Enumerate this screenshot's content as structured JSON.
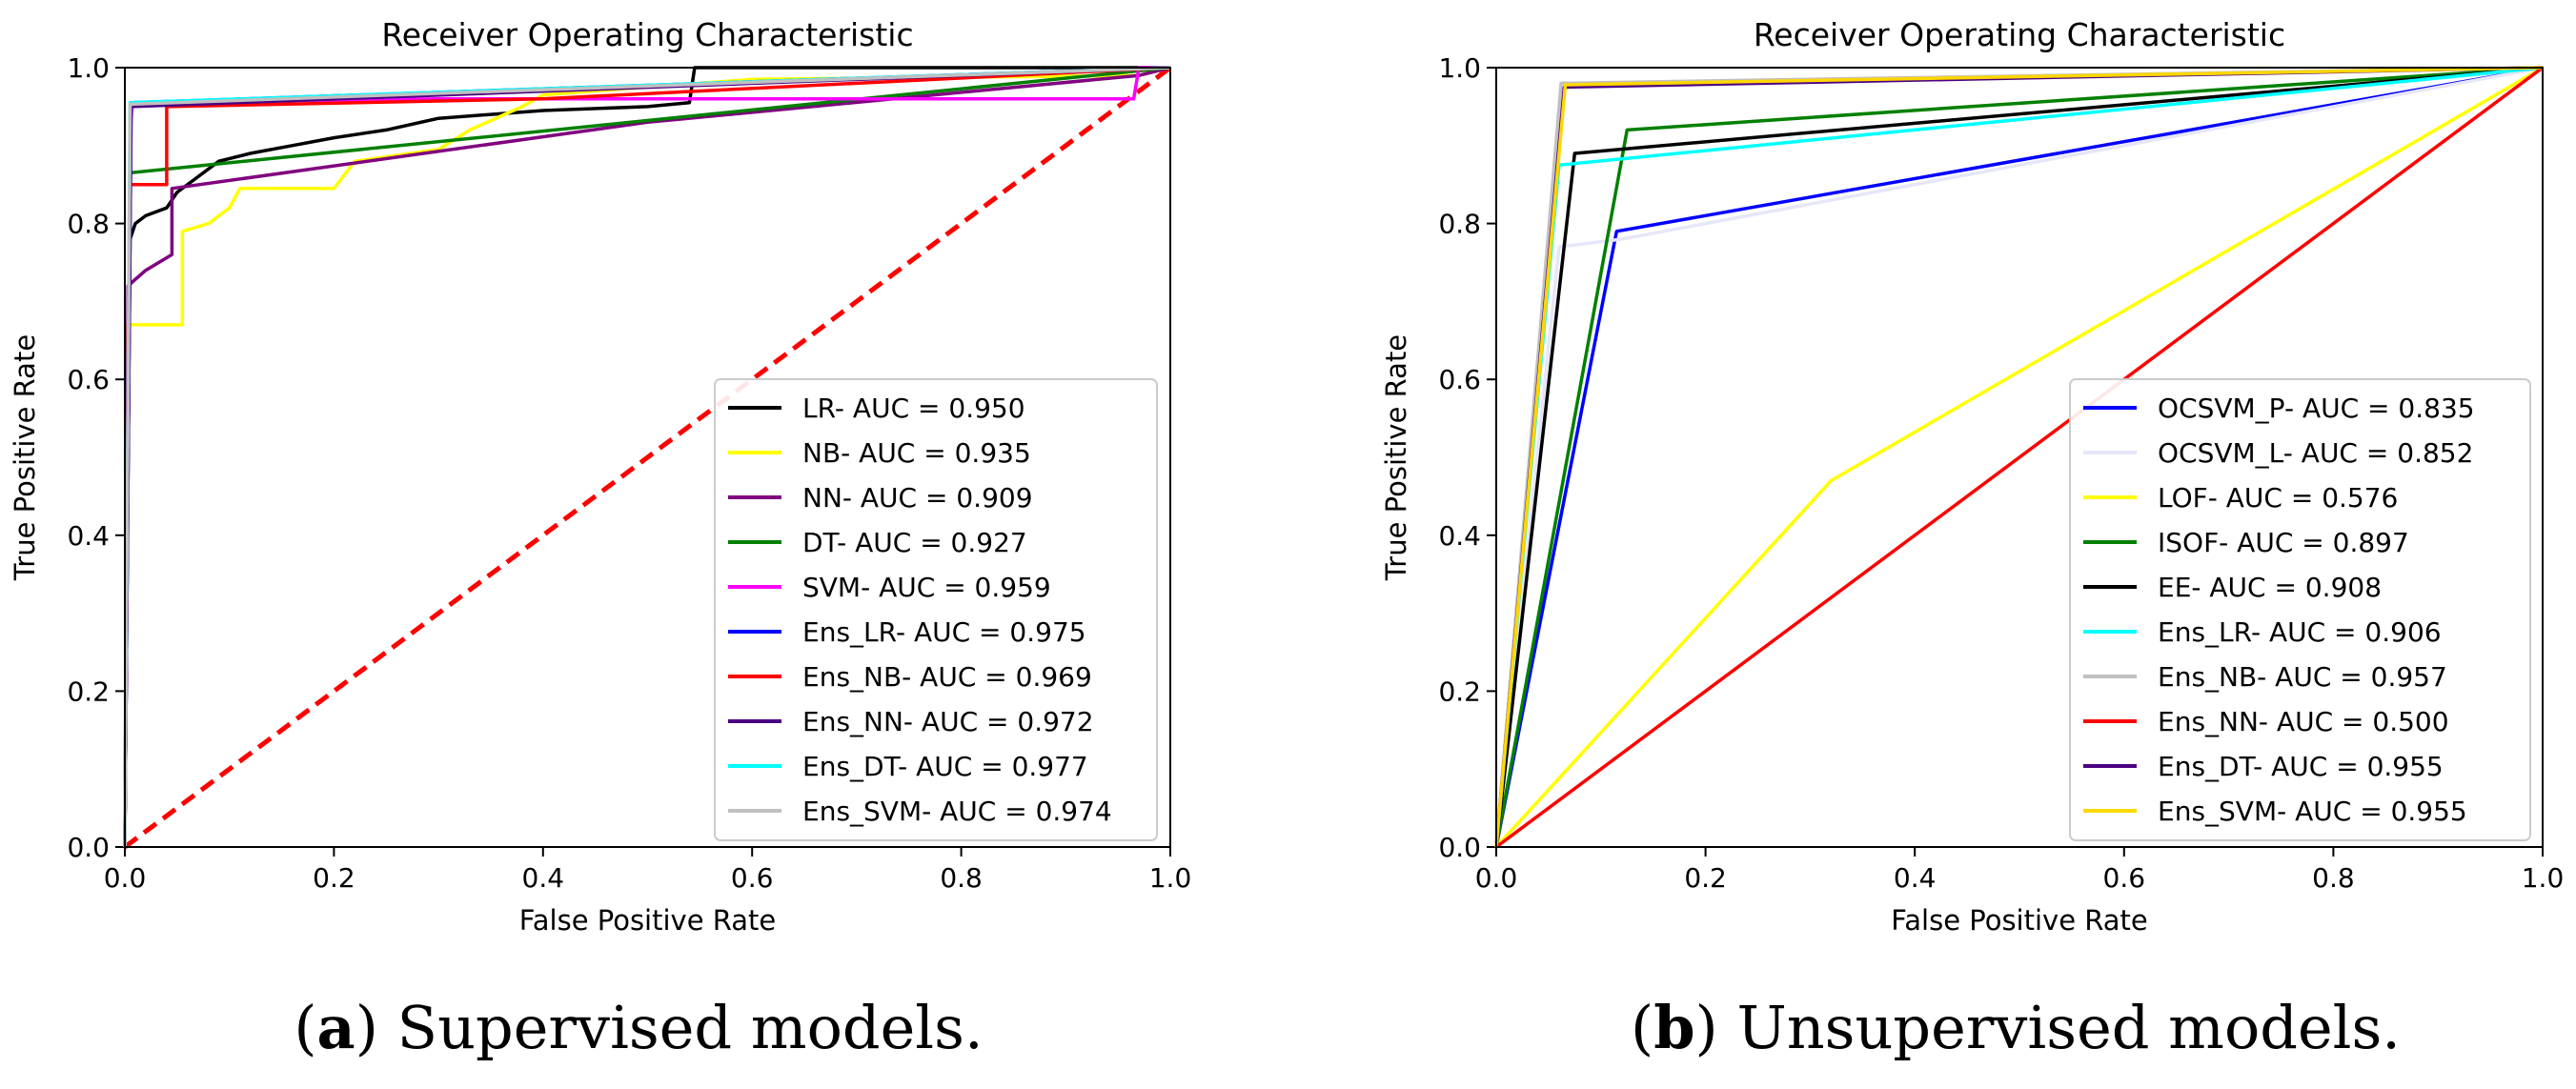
{
  "figure": {
    "left_caption": {
      "label": "a",
      "text": "Supervised models."
    },
    "right_caption": {
      "label": "b",
      "text": "Unsupervised models."
    }
  },
  "chart_data": [
    {
      "type": "line",
      "title": "Receiver Operating Characteristic",
      "xlabel": "False Positive Rate",
      "ylabel": "True Positive Rate",
      "xlim": [
        0,
        1
      ],
      "ylim": [
        0,
        1
      ],
      "xticks": [
        "0.0",
        "0.2",
        "0.4",
        "0.6",
        "0.8",
        "1.0"
      ],
      "yticks": [
        "0.0",
        "0.2",
        "0.4",
        "0.6",
        "0.8",
        "1.0"
      ],
      "legend_position": "lower-right",
      "series": [
        {
          "name": "LR- AUC = 0.950",
          "color": "#000000",
          "points": [
            [
              0,
              0
            ],
            [
              0.005,
              0.78
            ],
            [
              0.01,
              0.8
            ],
            [
              0.02,
              0.81
            ],
            [
              0.04,
              0.82
            ],
            [
              0.05,
              0.84
            ],
            [
              0.07,
              0.86
            ],
            [
              0.09,
              0.88
            ],
            [
              0.12,
              0.89
            ],
            [
              0.16,
              0.9
            ],
            [
              0.2,
              0.91
            ],
            [
              0.25,
              0.92
            ],
            [
              0.3,
              0.935
            ],
            [
              0.35,
              0.94
            ],
            [
              0.4,
              0.945
            ],
            [
              0.5,
              0.95
            ],
            [
              0.54,
              0.955
            ],
            [
              0.545,
              1.0
            ],
            [
              1,
              1
            ]
          ]
        },
        {
          "name": "NB- AUC = 0.935",
          "color": "#ffff00",
          "points": [
            [
              0,
              0
            ],
            [
              0.002,
              0.67
            ],
            [
              0.055,
              0.67
            ],
            [
              0.055,
              0.79
            ],
            [
              0.08,
              0.8
            ],
            [
              0.1,
              0.82
            ],
            [
              0.11,
              0.845
            ],
            [
              0.2,
              0.845
            ],
            [
              0.22,
              0.88
            ],
            [
              0.3,
              0.895
            ],
            [
              0.33,
              0.92
            ],
            [
              0.38,
              0.95
            ],
            [
              0.4,
              0.965
            ],
            [
              0.6,
              0.985
            ],
            [
              0.97,
              0.99
            ],
            [
              1,
              1
            ]
          ]
        },
        {
          "name": "NN- AUC = 0.909",
          "color": "#800080",
          "points": [
            [
              0,
              0
            ],
            [
              0.003,
              0.72
            ],
            [
              0.02,
              0.74
            ],
            [
              0.045,
              0.76
            ],
            [
              0.045,
              0.845
            ],
            [
              0.5,
              0.93
            ],
            [
              0.97,
              0.99
            ],
            [
              1,
              1
            ]
          ]
        },
        {
          "name": "DT- AUC = 0.927",
          "color": "#008000",
          "points": [
            [
              0,
              0
            ],
            [
              0.005,
              0.865
            ],
            [
              1,
              1
            ]
          ]
        },
        {
          "name": "SVM- AUC = 0.959",
          "color": "#ff00ff",
          "points": [
            [
              0,
              0
            ],
            [
              0.005,
              0.91
            ],
            [
              0.007,
              0.955
            ],
            [
              0.3,
              0.96
            ],
            [
              0.965,
              0.96
            ],
            [
              0.97,
              1.0
            ],
            [
              1,
              1
            ]
          ]
        },
        {
          "name": "Ens_LR- AUC = 0.975",
          "color": "#0000ff",
          "points": [
            [
              0,
              0
            ],
            [
              0.006,
              0.955
            ],
            [
              1,
              1
            ]
          ]
        },
        {
          "name": "Ens_NB- AUC = 0.969",
          "color": "#ff0000",
          "points": [
            [
              0,
              0
            ],
            [
              0.005,
              0.85
            ],
            [
              0.04,
              0.85
            ],
            [
              0.04,
              0.95
            ],
            [
              0.4,
              0.96
            ],
            [
              1,
              1
            ]
          ]
        },
        {
          "name": "Ens_NN- AUC = 0.972",
          "color": "#4b0082",
          "points": [
            [
              0,
              0
            ],
            [
              0.006,
              0.95
            ],
            [
              1,
              1
            ]
          ]
        },
        {
          "name": "Ens_DT- AUC = 0.977",
          "color": "#00ffff",
          "points": [
            [
              0,
              0
            ],
            [
              0.005,
              0.955
            ],
            [
              1,
              1
            ]
          ]
        },
        {
          "name": "Ens_SVM- AUC = 0.974",
          "color": "#c0c0c0",
          "points": [
            [
              0,
              0
            ],
            [
              0.005,
              0.953
            ],
            [
              1,
              1
            ]
          ]
        }
      ],
      "reference_line": {
        "points": [
          [
            0,
            0
          ],
          [
            1,
            1
          ]
        ],
        "color": "#ff0000",
        "style": "dashed"
      }
    },
    {
      "type": "line",
      "title": "Receiver Operating Characteristic",
      "xlabel": "False Positive Rate",
      "ylabel": "True Positive Rate",
      "xlim": [
        0,
        1
      ],
      "ylim": [
        0,
        1
      ],
      "xticks": [
        "0.0",
        "0.2",
        "0.4",
        "0.6",
        "0.8",
        "1.0"
      ],
      "yticks": [
        "0.0",
        "0.2",
        "0.4",
        "0.6",
        "0.8",
        "1.0"
      ],
      "legend_position": "lower-right",
      "series": [
        {
          "name": "OCSVM_P- AUC = 0.835",
          "color": "#0000ff",
          "points": [
            [
              0,
              0
            ],
            [
              0.115,
              0.79
            ],
            [
              1,
              1
            ]
          ]
        },
        {
          "name": "OCSVM_L- AUC = 0.852",
          "color": "#e6e6fa",
          "points": [
            [
              0,
              0
            ],
            [
              0.06,
              0.77
            ],
            [
              0.12,
              0.78
            ],
            [
              1,
              1
            ]
          ]
        },
        {
          "name": "LOF- AUC = 0.576",
          "color": "#ffff00",
          "points": [
            [
              0,
              0
            ],
            [
              0.32,
              0.47
            ],
            [
              1,
              1
            ]
          ]
        },
        {
          "name": "ISOF- AUC = 0.897",
          "color": "#008000",
          "points": [
            [
              0,
              0
            ],
            [
              0.125,
              0.92
            ],
            [
              1,
              1
            ]
          ]
        },
        {
          "name": "EE- AUC = 0.908",
          "color": "#000000",
          "points": [
            [
              0,
              0
            ],
            [
              0.075,
              0.89
            ],
            [
              1,
              1
            ]
          ]
        },
        {
          "name": "Ens_LR- AUC = 0.906",
          "color": "#00ffff",
          "points": [
            [
              0,
              0
            ],
            [
              0.06,
              0.875
            ],
            [
              1,
              1
            ]
          ]
        },
        {
          "name": "Ens_NB- AUC = 0.957",
          "color": "#c0c0c0",
          "points": [
            [
              0,
              0
            ],
            [
              0.062,
              0.98
            ],
            [
              1,
              1
            ]
          ]
        },
        {
          "name": "Ens_NN- AUC = 0.500",
          "color": "#ff0000",
          "points": [
            [
              0,
              0
            ],
            [
              1,
              1
            ]
          ]
        },
        {
          "name": "Ens_DT- AUC = 0.955",
          "color": "#4b0082",
          "points": [
            [
              0,
              0
            ],
            [
              0.065,
              0.975
            ],
            [
              1,
              1
            ]
          ]
        },
        {
          "name": "Ens_SVM- AUC = 0.955",
          "color": "#ffd700",
          "points": [
            [
              0,
              0
            ],
            [
              0.066,
              0.978
            ],
            [
              1,
              1
            ]
          ]
        }
      ]
    }
  ]
}
